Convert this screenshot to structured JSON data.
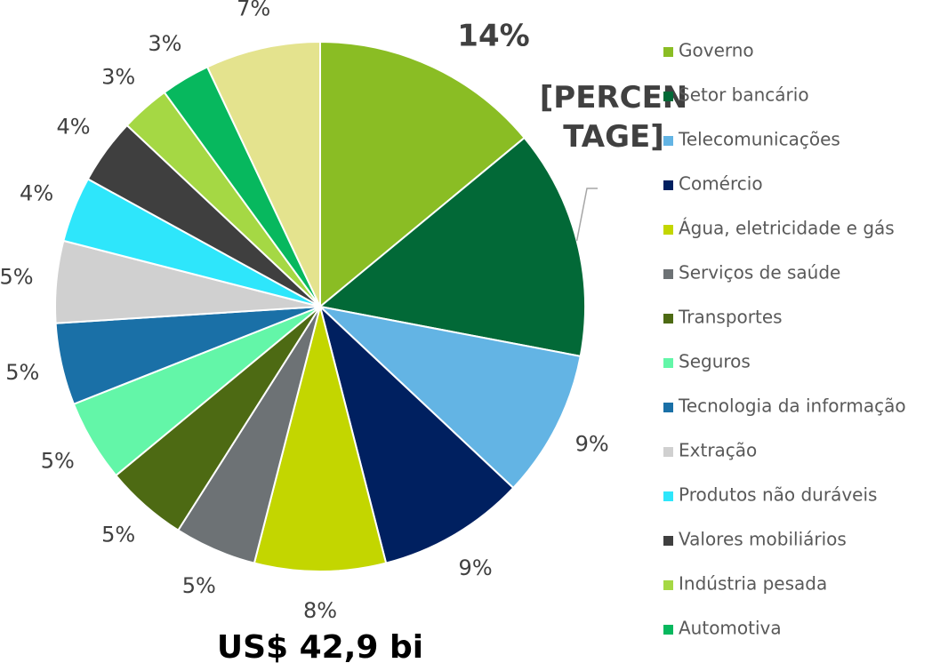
{
  "chart_data": {
    "type": "pie",
    "title": "US$ 42,9 bi",
    "categories": [
      "Governo",
      "Setor bancário",
      "Telecomunicações",
      "Comércio",
      "Água, eletricidade e gás",
      "Serviços de saúde",
      "Transportes",
      "Seguros",
      "Tecnologia da informação",
      "Extração",
      "Produtos não duráveis",
      "Valores mobiliários",
      "Indústria pesada",
      "Automotiva",
      null
    ],
    "values": [
      14,
      14,
      9,
      9,
      8,
      5,
      5,
      5,
      5,
      5,
      4,
      4,
      3,
      3,
      7
    ],
    "value_labels": [
      "14%",
      "[PERCENTAGE]",
      "9%",
      "9%",
      "8%",
      "5%",
      "5%",
      "5%",
      "5%",
      "5%",
      "4%",
      "4%",
      "3%",
      "3%",
      "7%"
    ],
    "colors": [
      "#8abd24",
      "#026937",
      "#63b4e4",
      "#002060",
      "#c3d600",
      "#6d7275",
      "#4d6a13",
      "#63f6a8",
      "#1a70a7",
      "#d0d0d0",
      "#2ee6fb",
      "#3f3f3f",
      "#a5d844",
      "#07b85e",
      "#e4e38e"
    ],
    "legend": "right"
  }
}
